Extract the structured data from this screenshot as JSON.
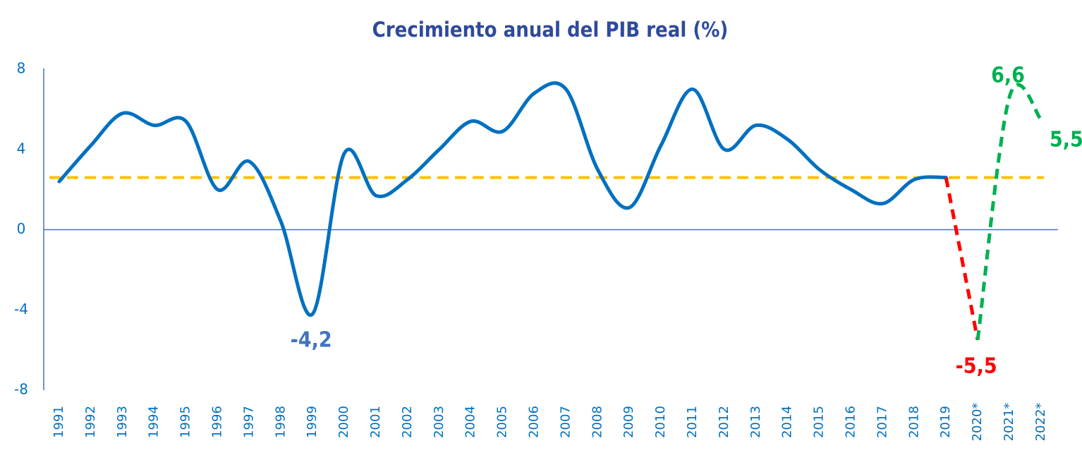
{
  "chart_data": {
    "type": "line",
    "title": "Crecimiento anual del PIB real (%)",
    "categories": [
      "1991",
      "1992",
      "1993",
      "1994",
      "1995",
      "1996",
      "1997",
      "1998",
      "1999",
      "2000",
      "2001",
      "2002",
      "2003",
      "2004",
      "2005",
      "2006",
      "2007",
      "2008",
      "2009",
      "2010",
      "2011",
      "2012",
      "2013",
      "2014",
      "2015",
      "2016",
      "2017",
      "2018",
      "2019",
      "2020*",
      "2021*",
      "2022*"
    ],
    "series": [
      {
        "color": "#0070c0",
        "dashed": false,
        "values": [
          2.4,
          4.2,
          5.8,
          5.2,
          5.4,
          2.0,
          3.4,
          0.4,
          -4.2,
          3.8,
          1.7,
          2.5,
          4.0,
          5.4,
          4.9,
          6.8,
          7.0,
          3.0,
          1.1,
          4.2,
          7.0,
          4.0,
          5.2,
          4.5,
          3.0,
          2.0,
          1.3,
          2.5,
          2.6,
          null,
          null,
          null
        ],
        "value_labels": [
          null,
          null,
          null,
          null,
          null,
          null,
          null,
          null,
          "-4,2",
          null,
          null,
          null,
          null,
          null,
          null,
          null,
          null,
          null,
          null,
          null,
          null,
          null,
          null,
          null,
          null,
          null,
          null,
          null,
          null,
          null,
          null,
          null
        ],
        "label_color": "#4472c4"
      },
      {
        "color": "#ff0000",
        "dashed": true,
        "values": [
          null,
          null,
          null,
          null,
          null,
          null,
          null,
          null,
          null,
          null,
          null,
          null,
          null,
          null,
          null,
          null,
          null,
          null,
          null,
          null,
          null,
          null,
          null,
          null,
          null,
          null,
          null,
          null,
          2.6,
          -5.5,
          null,
          null
        ],
        "value_labels": [
          null,
          null,
          null,
          null,
          null,
          null,
          null,
          null,
          null,
          null,
          null,
          null,
          null,
          null,
          null,
          null,
          null,
          null,
          null,
          null,
          null,
          null,
          null,
          null,
          null,
          null,
          null,
          null,
          null,
          "-5,5",
          null,
          null
        ],
        "label_color": "#ff0000"
      },
      {
        "color": "#00b050",
        "dashed": true,
        "values": [
          null,
          null,
          null,
          null,
          null,
          null,
          null,
          null,
          null,
          null,
          null,
          null,
          null,
          null,
          null,
          null,
          null,
          null,
          null,
          null,
          null,
          null,
          null,
          null,
          null,
          null,
          null,
          null,
          null,
          -5.5,
          6.6,
          5.5
        ],
        "value_labels": [
          null,
          null,
          null,
          null,
          null,
          null,
          null,
          null,
          null,
          null,
          null,
          null,
          null,
          null,
          null,
          null,
          null,
          null,
          null,
          null,
          null,
          null,
          null,
          null,
          null,
          null,
          null,
          null,
          null,
          null,
          "6,6",
          "5,5"
        ],
        "label_color": "#00b050"
      }
    ],
    "reference_line": {
      "value": 2.6,
      "color": "#ffc000"
    },
    "ylim": [
      -8,
      8
    ],
    "yticks": [
      -8,
      -4,
      0,
      4,
      8
    ],
    "grid": false
  }
}
